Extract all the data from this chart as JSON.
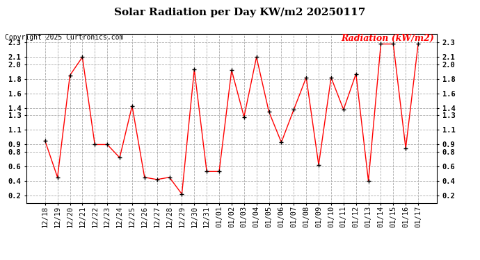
{
  "title": "Solar Radiation per Day KW/m2 20250117",
  "copyright_text": "Copyright 2025 Curtronics.com",
  "legend_label": "Radiation (kW/m2)",
  "dates": [
    "12/18",
    "12/19",
    "12/20",
    "12/21",
    "12/22",
    "12/23",
    "12/24",
    "12/25",
    "12/26",
    "12/27",
    "12/28",
    "12/29",
    "12/30",
    "12/31",
    "01/01",
    "01/02",
    "01/03",
    "01/04",
    "01/05",
    "01/06",
    "01/07",
    "01/08",
    "01/09",
    "01/10",
    "01/11",
    "01/12",
    "01/13",
    "01/14",
    "01/15",
    "01/16",
    "01/17"
  ],
  "values": [
    0.95,
    0.45,
    1.85,
    2.1,
    0.9,
    0.9,
    0.72,
    1.43,
    0.45,
    0.42,
    0.45,
    0.22,
    1.93,
    0.53,
    0.53,
    1.92,
    1.28,
    2.1,
    1.35,
    0.93,
    1.38,
    1.82,
    0.62,
    1.82,
    1.38,
    1.87,
    0.4,
    2.28,
    2.28,
    0.85,
    2.28
  ],
  "line_color": "red",
  "marker_color": "black",
  "bg_color": "white",
  "grid_color": "#aaaaaa",
  "ylim": [
    0.1,
    2.42
  ],
  "yticks": [
    0.2,
    0.4,
    0.6,
    0.8,
    0.9,
    1.1,
    1.3,
    1.4,
    1.6,
    1.8,
    2.0,
    2.1,
    2.3
  ],
  "title_fontsize": 11,
  "copyright_fontsize": 7,
  "legend_fontsize": 9,
  "tick_fontsize": 7.5
}
